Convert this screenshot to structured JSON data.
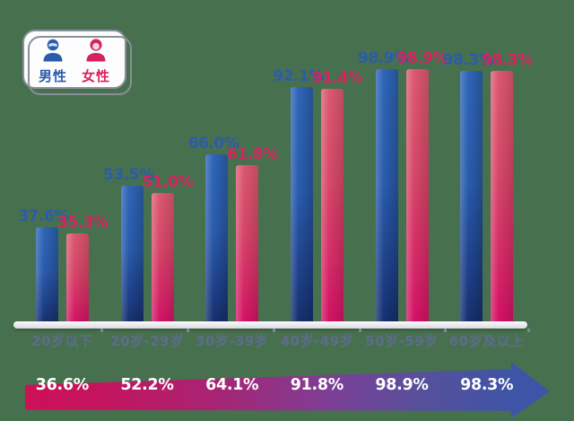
{
  "page": {
    "background_color": "#47714e"
  },
  "legend": {
    "male_label": "男性",
    "female_label": "女性",
    "male_color": "#2b5cab",
    "female_color": "#d6235f"
  },
  "chart_data": {
    "type": "bar",
    "categories": [
      "20岁以下",
      "20岁-29岁",
      "30岁-39岁",
      "40岁-49岁",
      "50岁-59岁",
      "60岁及以上"
    ],
    "series": [
      {
        "name": "男性",
        "color": "#2b5cab",
        "values": [
          37.6,
          53.5,
          66.0,
          92.1,
          98.9,
          98.3
        ],
        "labels": [
          "37.6%",
          "53.5%",
          "66.0%",
          "92.1%",
          "98.9%",
          "98.3%"
        ]
      },
      {
        "name": "女性",
        "color": "#d6235f",
        "values": [
          35.3,
          51.0,
          61.8,
          91.4,
          98.9,
          98.3
        ],
        "labels": [
          "35.3%",
          "51.0%",
          "61.8%",
          "91.4%",
          "98.9%",
          "98.3%"
        ]
      }
    ],
    "ylim": [
      0,
      100
    ],
    "grid": false,
    "legend_position": "top-left",
    "title": "",
    "xlabel": "",
    "ylabel": ""
  },
  "arrow": {
    "values": [
      "36.6%",
      "52.2%",
      "64.1%",
      "91.8%",
      "98.9%",
      "98.3%"
    ],
    "gradient": [
      "#ce0f58",
      "#7c3f95",
      "#3e54a6"
    ],
    "text_color": "#ffffff"
  }
}
